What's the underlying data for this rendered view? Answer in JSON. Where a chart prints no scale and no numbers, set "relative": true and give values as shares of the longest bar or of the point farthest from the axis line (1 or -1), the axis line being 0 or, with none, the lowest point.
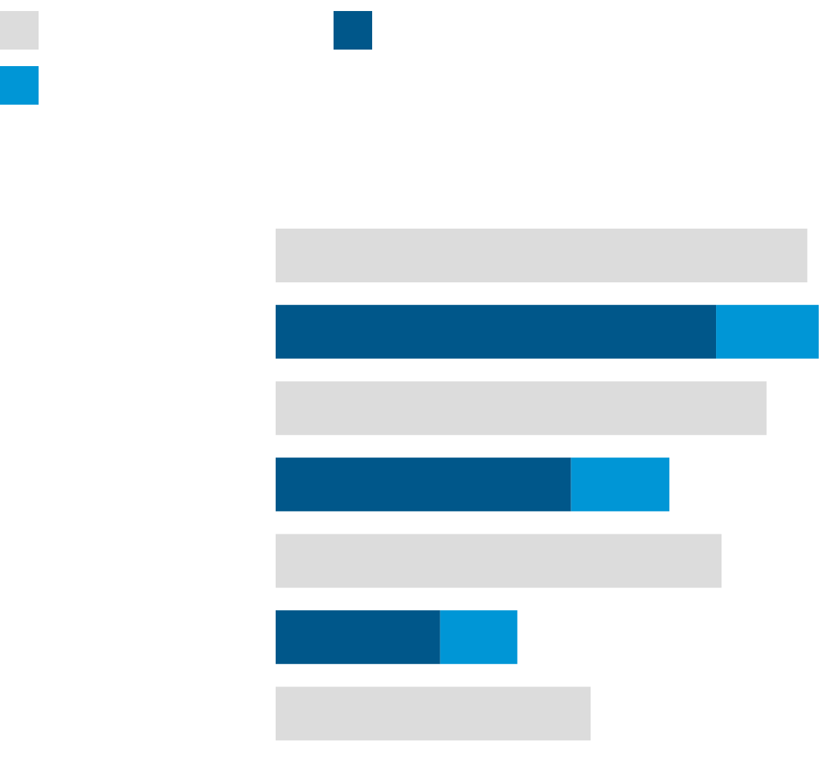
{
  "chart_data": {
    "type": "bar",
    "orientation": "horizontal",
    "relative": true,
    "stacked": true,
    "categories": [
      null,
      null,
      null,
      null,
      null,
      null,
      null
    ],
    "series": [
      {
        "color": "#dcdcdc",
        "values": [
          0.979,
          null,
          0.904,
          null,
          0.821,
          null,
          0.58
        ]
      },
      {
        "color": "#00578a",
        "values": [
          null,
          0.811,
          null,
          0.544,
          null,
          0.303,
          null
        ]
      },
      {
        "color": "#0096d6",
        "values": [
          null,
          0.189,
          null,
          0.181,
          null,
          0.142,
          null
        ]
      }
    ]
  }
}
